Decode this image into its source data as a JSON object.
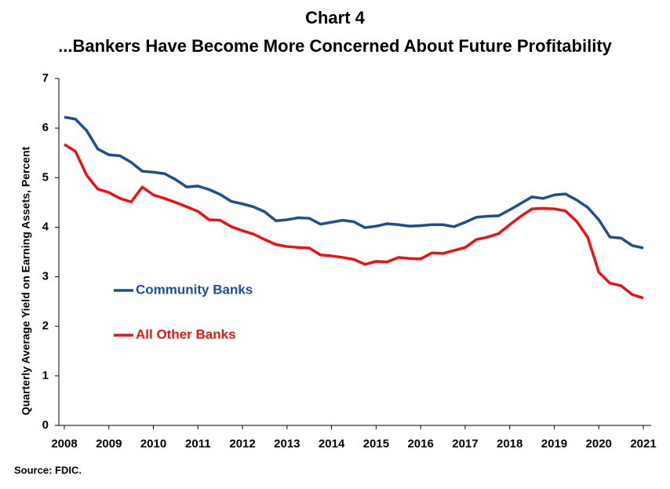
{
  "chart_data": {
    "type": "line",
    "title": "Chart 4",
    "subtitle": "...Bankers Have Become More Concerned About Future Profitability",
    "y_label": "Quarterly Average Yield on Earning Assets, Percent",
    "source": "Source: FDIC.",
    "x": [
      2008,
      2008.25,
      2008.5,
      2008.75,
      2009,
      2009.25,
      2009.5,
      2009.75,
      2010,
      2010.25,
      2010.5,
      2010.75,
      2011,
      2011.25,
      2011.5,
      2011.75,
      2012,
      2012.25,
      2012.5,
      2012.75,
      2013,
      2013.25,
      2013.5,
      2013.75,
      2014,
      2014.25,
      2014.5,
      2014.75,
      2015,
      2015.25,
      2015.5,
      2015.75,
      2016,
      2016.25,
      2016.5,
      2016.75,
      2017,
      2017.25,
      2017.5,
      2017.75,
      2018,
      2018.25,
      2018.5,
      2018.75,
      2019,
      2019.25,
      2019.5,
      2019.75,
      2020,
      2020.25,
      2020.5,
      2020.75,
      2021
    ],
    "series": [
      {
        "name": "Community Banks",
        "color": "#1f4e8c",
        "values": [
          6.22,
          6.18,
          5.95,
          5.58,
          5.46,
          5.44,
          5.31,
          5.13,
          5.11,
          5.08,
          4.96,
          4.81,
          4.83,
          4.76,
          4.66,
          4.52,
          4.47,
          4.41,
          4.31,
          4.13,
          4.15,
          4.19,
          4.18,
          4.06,
          4.1,
          4.14,
          4.11,
          3.99,
          4.02,
          4.07,
          4.05,
          4.02,
          4.03,
          4.05,
          4.05,
          4.01,
          4.1,
          4.2,
          4.22,
          4.23,
          4.35,
          4.48,
          4.61,
          4.58,
          4.65,
          4.67,
          4.55,
          4.4,
          4.15,
          3.8,
          3.78,
          3.63,
          3.58
        ]
      },
      {
        "name": "All Other Banks",
        "color": "#ee1111",
        "values": [
          5.67,
          5.53,
          5.05,
          4.77,
          4.7,
          4.58,
          4.51,
          4.81,
          4.65,
          4.58,
          4.5,
          4.41,
          4.32,
          4.15,
          4.14,
          4.01,
          3.93,
          3.86,
          3.75,
          3.65,
          3.61,
          3.59,
          3.58,
          3.44,
          3.42,
          3.39,
          3.35,
          3.25,
          3.31,
          3.3,
          3.39,
          3.37,
          3.36,
          3.48,
          3.47,
          3.53,
          3.59,
          3.75,
          3.8,
          3.87,
          4.05,
          4.22,
          4.37,
          4.38,
          4.37,
          4.33,
          4.12,
          3.8,
          3.09,
          2.87,
          2.82,
          2.64,
          2.57
        ]
      }
    ],
    "xlim": [
      2008,
      2021
    ],
    "xticks": [
      2008,
      2009,
      2010,
      2011,
      2012,
      2013,
      2014,
      2015,
      2016,
      2017,
      2018,
      2019,
      2020,
      2021
    ],
    "ylim": [
      0,
      7
    ],
    "yticks": [
      0,
      1,
      2,
      3,
      4,
      5,
      6,
      7
    ]
  }
}
